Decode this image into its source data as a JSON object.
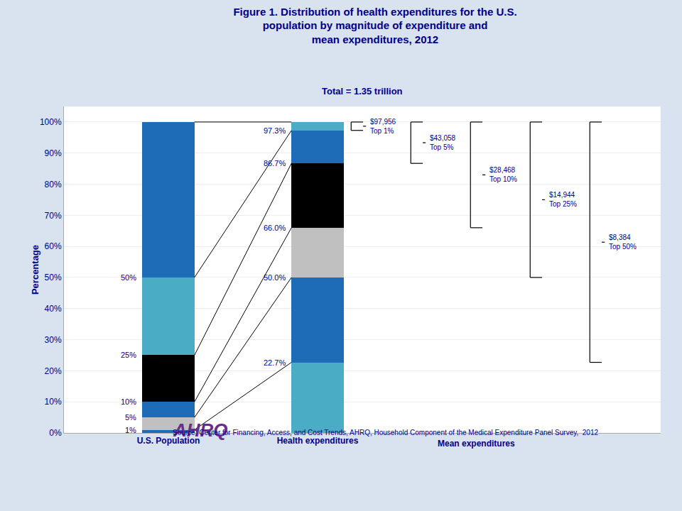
{
  "chart_data": {
    "type": "bar",
    "stacked": true,
    "title": "Figure 1. Distribution of health expenditures for the U.S.\npopulation by magnitude of expenditure and\nmean expenditures, 2012",
    "subtitle": "Total = 1.35 trillion",
    "logo": "AHRQ",
    "logo_color": "#6B2D8B",
    "source": "Source: Center for Financing, Access, and Cost Trends, AHRQ, Household Component of the Medical Expenditure Panel Survey,  2012",
    "ylabel": "Percentage",
    "categories": [
      "U.S. Population",
      "Health expenditures"
    ],
    "bracket_axis_label": "Mean expenditures",
    "background_color": "#d9e2ef",
    "plot_background": "#ffffff",
    "text_color": "#00008B",
    "line_color": "#000000",
    "series": [
      {
        "values": [
          1,
          22.7
        ],
        "colors": [
          "#1E6BB8",
          "#4BACC6"
        ]
      },
      {
        "values": [
          4,
          27.3
        ],
        "colors": [
          "#C0C0C0",
          "#1E6BB8"
        ]
      },
      {
        "values": [
          5,
          16.0
        ],
        "colors": [
          "#1E6BB8",
          "#C0C0C0"
        ]
      },
      {
        "values": [
          15,
          20.7
        ],
        "colors": [
          "#000000",
          "#000000"
        ]
      },
      {
        "values": [
          25,
          10.6
        ],
        "colors": [
          "#4BACC6",
          "#1E6BB8"
        ]
      },
      {
        "values": [
          50,
          2.7
        ],
        "colors": [
          "#1E6BB8",
          "#4BACC6"
        ]
      }
    ],
    "boundary_labels": [
      [
        {
          "value": 1,
          "label": "1%"
        },
        {
          "value": 5,
          "label": "5%"
        },
        {
          "value": 10,
          "label": "10%"
        },
        {
          "value": 25,
          "label": "25%"
        },
        {
          "value": 50,
          "label": "50%"
        }
      ],
      [
        {
          "value": 22.7,
          "label": "22.7%"
        },
        {
          "value": 50.0,
          "label": "50.0%"
        },
        {
          "value": 66.0,
          "label": "66.0%"
        },
        {
          "value": 86.7,
          "label": "86.7%"
        },
        {
          "value": 97.3,
          "label": "97.3%"
        }
      ]
    ],
    "connectors": [
      [
        1,
        22.7
      ],
      [
        5,
        50.0
      ],
      [
        10,
        66.0
      ],
      [
        25,
        86.7
      ],
      [
        50,
        97.3
      ],
      [
        100,
        100.0
      ]
    ],
    "brackets": [
      {
        "low": 97.3,
        "high": 100.0,
        "label": "$97,956\nTop 1%"
      },
      {
        "low": 86.7,
        "high": 100.0,
        "label": "$43,058\nTop 5%"
      },
      {
        "low": 66.0,
        "high": 100.0,
        "label": "$28,468\nTop 10%"
      },
      {
        "low": 50.0,
        "high": 100.0,
        "label": "$14,944\nTop 25%"
      },
      {
        "low": 22.7,
        "high": 100.0,
        "label": "$8,384\nTop 50%"
      }
    ],
    "ylim": [
      0,
      105
    ],
    "yticks": [
      {
        "value": 0,
        "label": "0%"
      },
      {
        "value": 10,
        "label": "10%"
      },
      {
        "value": 20,
        "label": "20%"
      },
      {
        "value": 30,
        "label": "30%"
      },
      {
        "value": 40,
        "label": "40%"
      },
      {
        "value": 50,
        "label": "50%"
      },
      {
        "value": 60,
        "label": "60%"
      },
      {
        "value": 70,
        "label": "70%"
      },
      {
        "value": 80,
        "label": "80%"
      },
      {
        "value": 90,
        "label": "90%"
      },
      {
        "value": 100,
        "label": "100%"
      }
    ],
    "grid": true
  }
}
